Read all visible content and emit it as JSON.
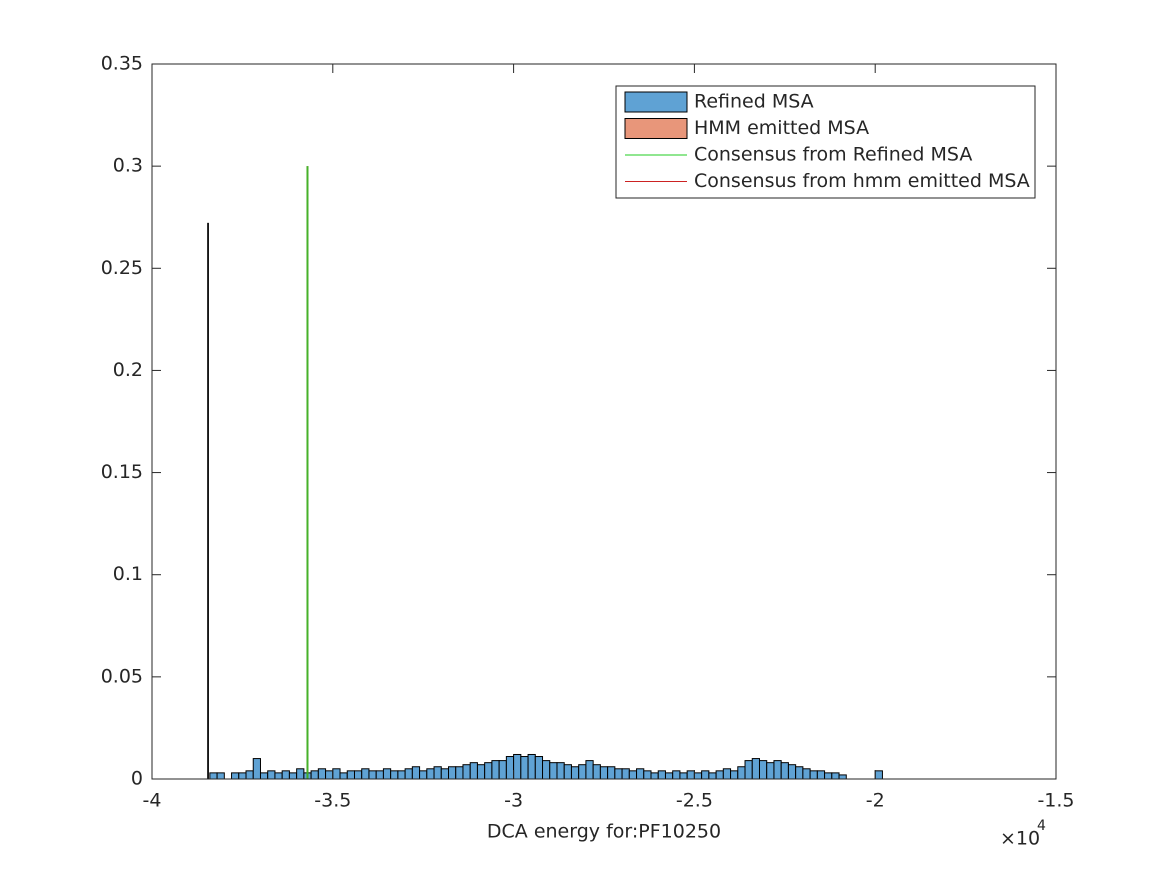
{
  "chart_data": {
    "type": "histogram",
    "xlabel": "DCA energy for:PF10250",
    "x_multiplier": {
      "base": "×10",
      "exponent": "4"
    },
    "xlim": [
      -4,
      -1.5
    ],
    "xticks": [
      -4,
      -3.5,
      -3,
      -2.5,
      -2,
      -1.5
    ],
    "ylim": [
      0,
      0.35
    ],
    "yticks": [
      0,
      0.05,
      0.1,
      0.15,
      0.2,
      0.25,
      0.3,
      0.35
    ],
    "legend": "top-right",
    "series": [
      {
        "name": "Refined MSA",
        "color": "#5fa2d4",
        "bins": [
          -3.84,
          -3.82,
          -3.8,
          -3.78,
          -3.76,
          -3.74,
          -3.72,
          -3.7,
          -3.68,
          -3.66,
          -3.64,
          -3.62,
          -3.6,
          -3.58,
          -3.56,
          -3.54,
          -3.52,
          -3.5,
          -3.48,
          -3.46,
          -3.44,
          -3.42,
          -3.4,
          -3.38,
          -3.36,
          -3.34,
          -3.32,
          -3.3,
          -3.28,
          -3.26,
          -3.24,
          -3.22,
          -3.2,
          -3.18,
          -3.16,
          -3.14,
          -3.12,
          -3.1,
          -3.08,
          -3.06,
          -3.04,
          -3.02,
          -3,
          -2.98,
          -2.96,
          -2.94,
          -2.92,
          -2.9,
          -2.88,
          -2.86,
          -2.84,
          -2.82,
          -2.8,
          -2.78,
          -2.76,
          -2.74,
          -2.72,
          -2.7,
          -2.68,
          -2.66,
          -2.64,
          -2.62,
          -2.6,
          -2.58,
          -2.56,
          -2.54,
          -2.52,
          -2.5,
          -2.48,
          -2.46,
          -2.44,
          -2.42,
          -2.4,
          -2.38,
          -2.36,
          -2.34,
          -2.32,
          -2.3,
          -2.28,
          -2.26,
          -2.24,
          -2.22,
          -2.2,
          -2.18,
          -2.16,
          -2.14,
          -2.12,
          -2.1,
          -2.08,
          -2.06,
          -2.04,
          -2.02,
          -2,
          -1.98
        ],
        "counts": [
          0.003,
          0.003,
          0,
          0.003,
          0.003,
          0.004,
          0.01,
          0.003,
          0.004,
          0.003,
          0.004,
          0.003,
          0.005,
          0.003,
          0.004,
          0.005,
          0.004,
          0.005,
          0.003,
          0.004,
          0.004,
          0.005,
          0.004,
          0.004,
          0.005,
          0.004,
          0.004,
          0.005,
          0.006,
          0.004,
          0.005,
          0.006,
          0.005,
          0.006,
          0.006,
          0.007,
          0.008,
          0.007,
          0.008,
          0.009,
          0.009,
          0.011,
          0.012,
          0.011,
          0.012,
          0.011,
          0.009,
          0.008,
          0.008,
          0.007,
          0.006,
          0.007,
          0.009,
          0.007,
          0.006,
          0.006,
          0.005,
          0.005,
          0.004,
          0.005,
          0.004,
          0.003,
          0.004,
          0.003,
          0.004,
          0.003,
          0.004,
          0.003,
          0.004,
          0.003,
          0.004,
          0.005,
          0.004,
          0.006,
          0.009,
          0.01,
          0.009,
          0.008,
          0.009,
          0.008,
          0.007,
          0.006,
          0.005,
          0.004,
          0.004,
          0.003,
          0.003,
          0.002,
          0,
          0,
          0,
          0,
          0.004
        ]
      },
      {
        "name": "HMM emitted MSA",
        "color": "#e8967a",
        "bins": [
          -3.846,
          -3.844
        ],
        "counts": [
          0.272
        ]
      }
    ],
    "lines": [
      {
        "name": "Consensus from Refined MSA",
        "color": "#22cc22",
        "x": [
          -3.57,
          -3.57
        ],
        "values": [
          0,
          0.3
        ]
      },
      {
        "name": "Consensus from hmm emitted MSA",
        "color": "#cc2222",
        "x": [
          -3.57,
          -3.57
        ],
        "values": [
          0,
          0.3
        ]
      }
    ]
  }
}
